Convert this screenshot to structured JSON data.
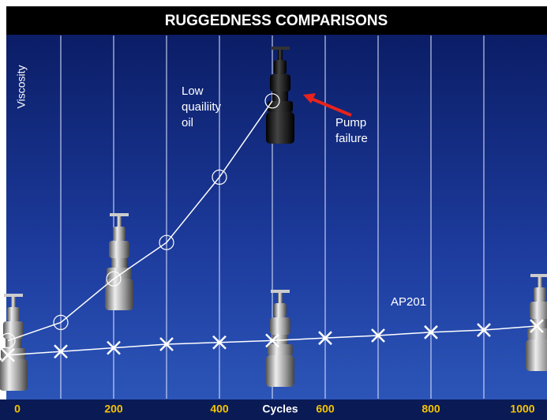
{
  "chart_data": {
    "type": "line",
    "title": "RUGGEDNESS COMPARISONS",
    "y_label": "Viscosity",
    "x_label": "Cycles",
    "xlim": [
      0,
      1000
    ],
    "xticks": [
      0,
      200,
      400,
      600,
      800,
      1000
    ],
    "xgrid": [
      100,
      200,
      300,
      400,
      500,
      600,
      700,
      800,
      900
    ],
    "ylim": [
      0,
      100
    ],
    "series": [
      {
        "name": "Low quailiity oil",
        "color": "#ffffff",
        "marker": "circle",
        "x": [
          0,
          100,
          200,
          300,
          400,
          500
        ],
        "values": [
          16,
          21,
          33,
          43,
          61,
          82
        ]
      },
      {
        "name": "AP201",
        "color": "#ffffff",
        "marker": "x",
        "x": [
          0,
          100,
          200,
          300,
          400,
          500,
          600,
          700,
          800,
          900,
          1000
        ],
        "values": [
          12,
          13,
          14,
          15,
          15.5,
          16,
          16.7,
          17.4,
          18.3,
          18.9,
          20
        ]
      }
    ],
    "annotations": [
      {
        "lines": [
          "Low",
          "quailiity",
          "oil"
        ]
      },
      {
        "lines": [
          "Pump",
          "failure"
        ]
      },
      {
        "lines": [
          "AP201"
        ]
      }
    ]
  }
}
